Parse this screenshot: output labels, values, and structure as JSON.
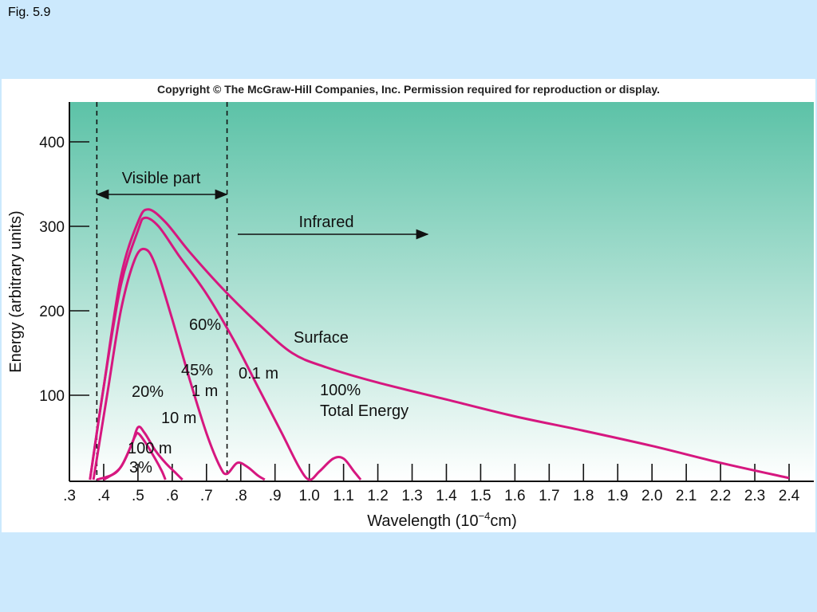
{
  "page": {
    "figure_label": "Fig. 5.9",
    "copyright": "Copyright © The McGraw-Hill Companies, Inc. Permission required for reproduction or display."
  },
  "colors": {
    "background": "#cce9fd",
    "plot_top": "#5cc2a7",
    "plot_bottom": "#ffffff",
    "curve": "#d6177f"
  },
  "chart_data": {
    "type": "line",
    "title": "",
    "xlabel_main": "Wavelength (10",
    "xlabel_exp": "−4",
    "xlabel_tail": "cm)",
    "ylabel": "Energy (arbitrary units)",
    "xlim": [
      0.3,
      2.45
    ],
    "ylim": [
      0,
      450
    ],
    "x_ticks": [
      {
        "v": 0.3,
        "label": ".3"
      },
      {
        "v": 0.4,
        "label": ".4"
      },
      {
        "v": 0.5,
        "label": ".5"
      },
      {
        "v": 0.6,
        "label": ".6"
      },
      {
        "v": 0.7,
        "label": ".7"
      },
      {
        "v": 0.8,
        "label": ".8"
      },
      {
        "v": 0.9,
        "label": ".9"
      },
      {
        "v": 1.0,
        "label": "1.0"
      },
      {
        "v": 1.1,
        "label": "1.1"
      },
      {
        "v": 1.2,
        "label": "1.2"
      },
      {
        "v": 1.3,
        "label": "1.3"
      },
      {
        "v": 1.4,
        "label": "1.4"
      },
      {
        "v": 1.5,
        "label": "1.5"
      },
      {
        "v": 1.6,
        "label": "1.6"
      },
      {
        "v": 1.7,
        "label": "1.7"
      },
      {
        "v": 1.8,
        "label": "1.8"
      },
      {
        "v": 1.9,
        "label": "1.9"
      },
      {
        "v": 2.0,
        "label": "2.0"
      },
      {
        "v": 2.1,
        "label": "2.1"
      },
      {
        "v": 2.2,
        "label": "2.2"
      },
      {
        "v": 2.3,
        "label": "2.3"
      },
      {
        "v": 2.4,
        "label": "2.4"
      }
    ],
    "y_ticks": [
      {
        "v": 100,
        "label": "100"
      },
      {
        "v": 200,
        "label": "200"
      },
      {
        "v": 300,
        "label": "300"
      },
      {
        "v": 400,
        "label": "400"
      }
    ],
    "visible_bounds": [
      0.38,
      0.76
    ],
    "series": [
      {
        "name": "Surface",
        "points": [
          [
            0.36,
            0
          ],
          [
            0.4,
            110
          ],
          [
            0.45,
            240
          ],
          [
            0.5,
            305
          ],
          [
            0.53,
            320
          ],
          [
            0.58,
            305
          ],
          [
            0.65,
            270
          ],
          [
            0.75,
            225
          ],
          [
            0.85,
            185
          ],
          [
            0.95,
            150
          ],
          [
            1.05,
            133
          ],
          [
            1.2,
            115
          ],
          [
            1.4,
            95
          ],
          [
            1.6,
            75
          ],
          [
            1.8,
            58
          ],
          [
            2.0,
            40
          ],
          [
            2.2,
            20
          ],
          [
            2.4,
            2
          ]
        ]
      },
      {
        "name": "0.1 m",
        "points": [
          [
            0.36,
            0
          ],
          [
            0.4,
            110
          ],
          [
            0.45,
            230
          ],
          [
            0.5,
            295
          ],
          [
            0.52,
            310
          ],
          [
            0.56,
            300
          ],
          [
            0.62,
            265
          ],
          [
            0.7,
            220
          ],
          [
            0.78,
            165
          ],
          [
            0.85,
            110
          ],
          [
            0.92,
            55
          ],
          [
            0.97,
            15
          ],
          [
            1.0,
            0
          ],
          [
            1.03,
            10
          ],
          [
            1.07,
            25
          ],
          [
            1.1,
            25
          ],
          [
            1.13,
            10
          ],
          [
            1.15,
            0
          ]
        ]
      },
      {
        "name": "1 m",
        "points": [
          [
            0.37,
            0
          ],
          [
            0.41,
            100
          ],
          [
            0.45,
            200
          ],
          [
            0.49,
            260
          ],
          [
            0.52,
            273
          ],
          [
            0.55,
            255
          ],
          [
            0.6,
            190
          ],
          [
            0.65,
            120
          ],
          [
            0.7,
            55
          ],
          [
            0.74,
            15
          ],
          [
            0.76,
            7
          ],
          [
            0.79,
            20
          ],
          [
            0.82,
            15
          ],
          [
            0.85,
            5
          ],
          [
            0.87,
            0
          ]
        ]
      },
      {
        "name": "10 m",
        "points": [
          [
            0.38,
            0
          ],
          [
            0.44,
            10
          ],
          [
            0.48,
            40
          ],
          [
            0.5,
            62
          ],
          [
            0.52,
            55
          ],
          [
            0.55,
            35
          ],
          [
            0.58,
            20
          ],
          [
            0.61,
            8
          ],
          [
            0.63,
            0
          ]
        ]
      },
      {
        "name": "100 m",
        "points": [
          [
            0.4,
            0
          ],
          [
            0.45,
            15
          ],
          [
            0.49,
            50
          ],
          [
            0.5,
            55
          ],
          [
            0.52,
            45
          ],
          [
            0.55,
            25
          ],
          [
            0.57,
            10
          ],
          [
            0.58,
            0
          ]
        ]
      }
    ],
    "annotations": {
      "visible_part": "Visible part",
      "infrared": "Infrared",
      "surface": "Surface",
      "pct_60": "60%",
      "pct_45": "45%",
      "m_1": "1 m",
      "m_01": "0.1 m",
      "pct_100": "100%",
      "total_energy": "Total Energy",
      "pct_20": "20%",
      "m_10": "10 m",
      "m_100": "100 m",
      "pct_3": "3%"
    }
  }
}
